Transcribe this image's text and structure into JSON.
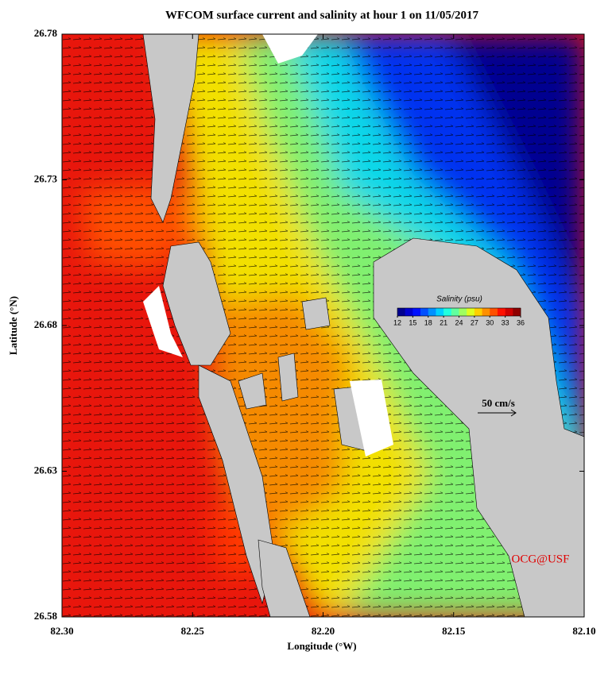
{
  "title": "WFCOM surface current and salinity at hour 1 on 11/05/2017",
  "x_label": "Longitude (°W)",
  "y_label": "Latitude (°N)",
  "xlim": [
    82.3,
    82.1
  ],
  "ylim": [
    26.58,
    26.78
  ],
  "xticks": [
    {
      "value": 82.3,
      "label": "82.30"
    },
    {
      "value": 82.25,
      "label": "82.25"
    },
    {
      "value": 82.2,
      "label": "82.20"
    },
    {
      "value": 82.15,
      "label": "82.15"
    },
    {
      "value": 82.1,
      "label": "82.10"
    }
  ],
  "yticks": [
    26.58,
    26.63,
    26.68,
    26.73,
    26.78
  ],
  "colorbar": {
    "label": "Salinity (psu)",
    "lim": [
      12,
      36
    ],
    "ticks": [
      12,
      15,
      18,
      21,
      24,
      27,
      30,
      33,
      36
    ],
    "colors": [
      "#00008f",
      "#0000cf",
      "#0010ff",
      "#0050ff",
      "#0090ff",
      "#00d0ff",
      "#20ffdf",
      "#60ff9f",
      "#9fff60",
      "#dfff20",
      "#ffd000",
      "#ff9000",
      "#ff5000",
      "#ff1000",
      "#cf0000",
      "#8f0000"
    ]
  },
  "scale_label": "50 cm/s",
  "credit": "OCG@USF"
}
